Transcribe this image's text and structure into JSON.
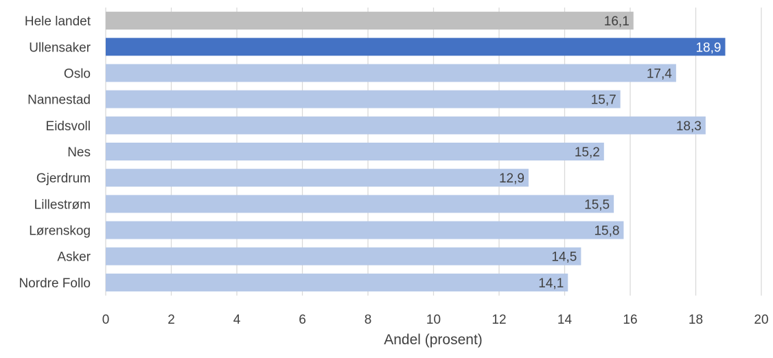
{
  "chart_data": {
    "type": "bar",
    "orientation": "horizontal",
    "categories": [
      "Hele landet",
      "Ullensaker",
      "Oslo",
      "Nannestad",
      "Eidsvoll",
      "Nes",
      "Gjerdrum",
      "Lillestrøm",
      "Lørenskog",
      "Asker",
      "Nordre Follo"
    ],
    "values": [
      16.1,
      18.9,
      17.4,
      15.7,
      18.3,
      15.2,
      12.9,
      15.5,
      15.8,
      14.5,
      14.1
    ],
    "value_labels": [
      "16,1",
      "18,9",
      "17,4",
      "15,7",
      "18,3",
      "15,2",
      "12,9",
      "15,5",
      "15,8",
      "14,5",
      "14,1"
    ],
    "bar_colors": [
      "#bfbfbf",
      "#4472c4",
      "#b4c7e7",
      "#b4c7e7",
      "#b4c7e7",
      "#b4c7e7",
      "#b4c7e7",
      "#b4c7e7",
      "#b4c7e7",
      "#b4c7e7",
      "#b4c7e7"
    ],
    "label_colors": [
      "#404040",
      "#ffffff",
      "#404040",
      "#404040",
      "#404040",
      "#404040",
      "#404040",
      "#404040",
      "#404040",
      "#404040",
      "#404040"
    ],
    "xlabel": "Andel (prosent)",
    "ylabel": "",
    "title": "",
    "xlim": [
      0,
      20
    ],
    "xticks": [
      0,
      2,
      4,
      6,
      8,
      10,
      12,
      14,
      16,
      18,
      20
    ],
    "xtick_labels": [
      "0",
      "2",
      "4",
      "6",
      "8",
      "10",
      "12",
      "14",
      "16",
      "18",
      "20"
    ],
    "grid": "vertical",
    "legend": "none"
  }
}
